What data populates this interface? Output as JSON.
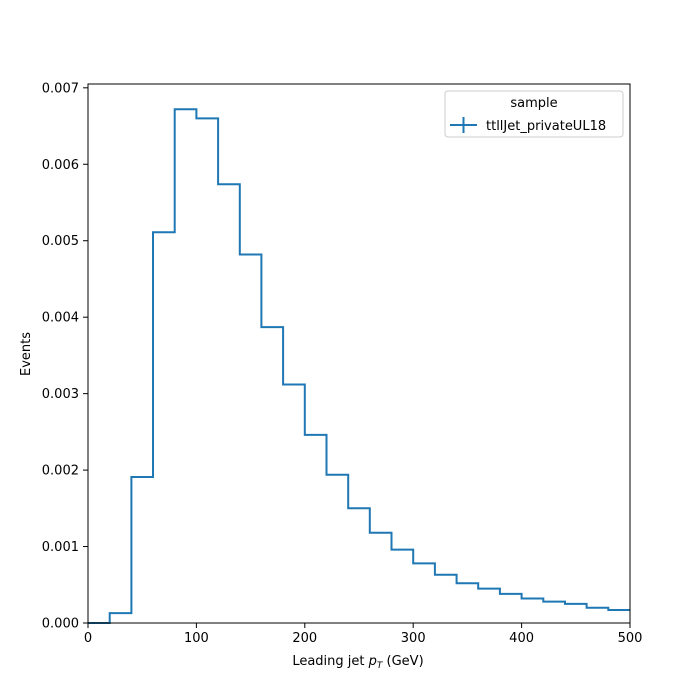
{
  "chart_data": {
    "type": "histogram",
    "title": "",
    "xlabel_main": "Leading jet  ",
    "xlabel_var": "p",
    "xlabel_sub": "T",
    "xlabel_unit": " (GeV)",
    "ylabel": "Events",
    "xlim": [
      0,
      500
    ],
    "ylim": [
      0,
      0.00705
    ],
    "xticks": [
      0,
      100,
      200,
      300,
      400,
      500
    ],
    "xtick_labels": [
      "0",
      "100",
      "200",
      "300",
      "400",
      "500"
    ],
    "yticks": [
      0,
      0.001,
      0.002,
      0.003,
      0.004,
      0.005,
      0.006,
      0.007
    ],
    "ytick_labels": [
      "0.000",
      "0.001",
      "0.002",
      "0.003",
      "0.004",
      "0.005",
      "0.006",
      "0.007"
    ],
    "grid": false,
    "legend": {
      "title": "sample",
      "placement": "top-right"
    },
    "bin_edges": [
      0,
      20,
      40,
      60,
      80,
      100,
      120,
      140,
      160,
      180,
      200,
      220,
      240,
      260,
      280,
      300,
      320,
      340,
      360,
      380,
      400,
      420,
      440,
      460,
      480,
      500
    ],
    "series": [
      {
        "name": "ttllJet_privateUL18",
        "color": "#1f77b4",
        "values": [
          0.0,
          0.00013,
          0.00191,
          0.00511,
          0.00672,
          0.0066,
          0.00574,
          0.00482,
          0.00387,
          0.00312,
          0.00246,
          0.00194,
          0.0015,
          0.00118,
          0.00096,
          0.00078,
          0.00063,
          0.00052,
          0.00045,
          0.00038,
          0.00032,
          0.00028,
          0.00025,
          0.0002,
          0.00017
        ]
      }
    ]
  }
}
